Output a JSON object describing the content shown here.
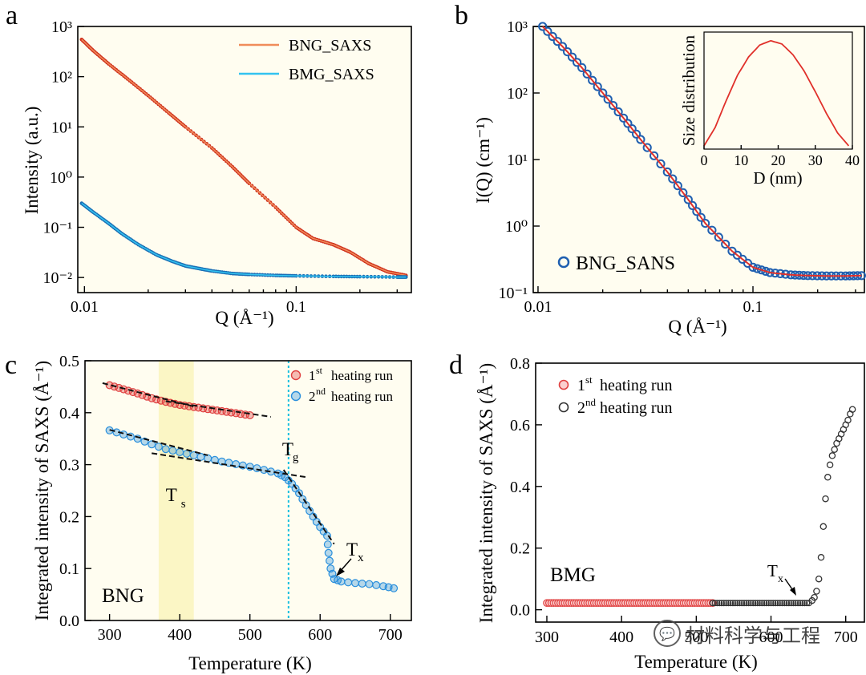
{
  "chart_data": [
    {
      "panel": "a",
      "type": "line",
      "xscale": "log",
      "yscale": "log",
      "xlim": [
        0.0093,
        0.35
      ],
      "ylim": [
        0.005,
        1000
      ],
      "xlabel": "Q (Å⁻¹)",
      "ylabel": "Intensity (a.u.)",
      "xticks": [
        {
          "v": 0.01,
          "label": "0.01"
        },
        {
          "v": 0.1,
          "label": "0.1"
        }
      ],
      "yticks": [
        {
          "v": 0.01,
          "label": "10⁻²"
        },
        {
          "v": 0.1,
          "label": "10⁻¹"
        },
        {
          "v": 1,
          "label": "10⁰"
        },
        {
          "v": 10,
          "label": "10¹"
        },
        {
          "v": 100,
          "label": "10²"
        },
        {
          "v": 1000,
          "label": "10³"
        }
      ],
      "legend_position": "top-right",
      "series": [
        {
          "name": "BNG_SAXS",
          "color": "#d0321e",
          "line_color": "#f08c5a",
          "x": [
            0.0097,
            0.011,
            0.013,
            0.016,
            0.02,
            0.025,
            0.03,
            0.04,
            0.05,
            0.06,
            0.08,
            0.1,
            0.12,
            0.15,
            0.18,
            0.22,
            0.27,
            0.33
          ],
          "y": [
            550,
            330,
            180,
            90,
            42,
            19,
            10,
            3.8,
            1.6,
            0.75,
            0.25,
            0.1,
            0.06,
            0.045,
            0.032,
            0.019,
            0.013,
            0.011
          ]
        },
        {
          "name": "BMG_SAXS",
          "color": "#1a6fb5",
          "line_color": "#33c3f0",
          "x": [
            0.0097,
            0.011,
            0.013,
            0.015,
            0.018,
            0.022,
            0.026,
            0.03,
            0.035,
            0.04,
            0.05,
            0.06,
            0.08,
            0.1,
            0.15,
            0.2,
            0.3,
            0.33
          ],
          "y": [
            0.3,
            0.2,
            0.12,
            0.075,
            0.045,
            0.028,
            0.021,
            0.017,
            0.015,
            0.0135,
            0.012,
            0.0115,
            0.011,
            0.0108,
            0.0105,
            0.0104,
            0.0102,
            0.0102
          ]
        }
      ]
    },
    {
      "panel": "b",
      "type": "scatter",
      "xscale": "log",
      "yscale": "log",
      "xlim": [
        0.0095,
        0.33
      ],
      "ylim": [
        0.1,
        1000
      ],
      "xlabel": "Q (Å⁻¹)",
      "ylabel": "I(Q) (cm⁻¹)",
      "xticks": [
        {
          "v": 0.01,
          "label": "0.01"
        },
        {
          "v": 0.1,
          "label": "0.1"
        }
      ],
      "yticks": [
        {
          "v": 0.1,
          "label": "10⁻¹"
        },
        {
          "v": 1,
          "label": "10⁰"
        },
        {
          "v": 10,
          "label": "10¹"
        },
        {
          "v": 100,
          "label": "10²"
        },
        {
          "v": 1000,
          "label": "10³"
        }
      ],
      "legend_position": "bottom-left",
      "series": [
        {
          "name": "BNG_SANS",
          "marker_color": "#1f5fb0",
          "fit_color": "#e0302a",
          "x": [
            0.0105,
            0.013,
            0.016,
            0.02,
            0.025,
            0.03,
            0.04,
            0.05,
            0.06,
            0.08,
            0.1,
            0.12,
            0.15,
            0.18,
            0.22,
            0.27,
            0.32
          ],
          "y": [
            1000,
            500,
            240,
            100,
            42,
            20,
            6.5,
            2.5,
            1.1,
            0.42,
            0.24,
            0.2,
            0.185,
            0.18,
            0.178,
            0.178,
            0.18
          ]
        }
      ],
      "inset": {
        "type": "line",
        "xlabel": "D (nm)",
        "ylabel": "Size distribution",
        "xlim": [
          0,
          40
        ],
        "xticks": [
          {
            "v": 0,
            "label": "0"
          },
          {
            "v": 10,
            "label": "10"
          },
          {
            "v": 20,
            "label": "20"
          },
          {
            "v": 30,
            "label": "30"
          },
          {
            "v": 40,
            "label": "40"
          }
        ],
        "color": "#e0302a",
        "x": [
          0,
          3,
          6,
          9,
          12,
          15,
          18,
          21,
          24,
          27,
          30,
          33,
          36,
          39
        ],
        "y": [
          0.03,
          0.2,
          0.45,
          0.68,
          0.85,
          0.96,
          1.0,
          0.97,
          0.87,
          0.72,
          0.53,
          0.33,
          0.15,
          0.03
        ]
      }
    },
    {
      "panel": "c",
      "type": "scatter",
      "xlim": [
        265,
        730
      ],
      "ylim": [
        0,
        0.5
      ],
      "xlabel": "Temperature (K)",
      "ylabel": "Integrated intensity of SAXS (Å⁻¹)",
      "xticks": [
        {
          "v": 300,
          "label": "300"
        },
        {
          "v": 400,
          "label": "400"
        },
        {
          "v": 500,
          "label": "500"
        },
        {
          "v": 600,
          "label": "600"
        },
        {
          "v": 700,
          "label": "700"
        }
      ],
      "yticks": [
        {
          "v": 0,
          "label": "0.0"
        },
        {
          "v": 0.1,
          "label": "0.1"
        },
        {
          "v": 0.2,
          "label": "0.2"
        },
        {
          "v": 0.3,
          "label": "0.3"
        },
        {
          "v": 0.4,
          "label": "0.4"
        },
        {
          "v": 0.5,
          "label": "0.5"
        }
      ],
      "legend_position": "top-right",
      "sample_label": "BNG",
      "shaded_band": {
        "x0": 370,
        "x1": 420,
        "label": "T",
        "sub": "s"
      },
      "vline": {
        "x": 555,
        "label": "T",
        "sub": "g"
      },
      "tx_marker": {
        "label": "T",
        "sub": "x",
        "x": 625,
        "y": 0.09
      },
      "series": [
        {
          "name_main": "1",
          "name_sup": "st",
          "name_rest": "heating run",
          "color": "#e04040",
          "x": [
            300,
            320,
            340,
            360,
            380,
            400,
            420,
            440,
            460,
            480,
            500
          ],
          "y": [
            0.453,
            0.445,
            0.437,
            0.428,
            0.421,
            0.415,
            0.411,
            0.407,
            0.403,
            0.399,
            0.395
          ]
        },
        {
          "name_main": "2",
          "name_sup": "nd",
          "name_rest": "heating run",
          "color": "#2a8fdc",
          "x": [
            300,
            320,
            340,
            360,
            380,
            400,
            420,
            440,
            460,
            480,
            500,
            520,
            540,
            550,
            560,
            570,
            580,
            590,
            600,
            610,
            612,
            615,
            620,
            630,
            650,
            670,
            690,
            705
          ],
          "y": [
            0.366,
            0.358,
            0.35,
            0.339,
            0.33,
            0.324,
            0.318,
            0.312,
            0.306,
            0.301,
            0.296,
            0.29,
            0.283,
            0.276,
            0.263,
            0.245,
            0.222,
            0.2,
            0.18,
            0.163,
            0.13,
            0.1,
            0.08,
            0.075,
            0.072,
            0.07,
            0.066,
            0.062
          ]
        }
      ]
    },
    {
      "panel": "d",
      "type": "scatter",
      "xlim": [
        285,
        725
      ],
      "ylim": [
        -0.04,
        0.8
      ],
      "xlabel": "Temperature (K)",
      "ylabel": "Integrated intensity of SAXS (Å⁻¹)",
      "xticks": [
        {
          "v": 300,
          "label": "300"
        },
        {
          "v": 400,
          "label": "400"
        },
        {
          "v": 500,
          "label": "500"
        },
        {
          "v": 600,
          "label": "600"
        },
        {
          "v": 700,
          "label": "700"
        }
      ],
      "yticks": [
        {
          "v": 0,
          "label": "0.0"
        },
        {
          "v": 0.2,
          "label": "0.2"
        },
        {
          "v": 0.4,
          "label": "0.4"
        },
        {
          "v": 0.6,
          "label": "0.6"
        },
        {
          "v": 0.8,
          "label": "0.8"
        }
      ],
      "legend_position": "top-left",
      "sample_label": "BMG",
      "tx_marker": {
        "label": "T",
        "sub": "x",
        "x": 655,
        "y": 0.03
      },
      "series": [
        {
          "name_main": "1",
          "name_sup": "st",
          "name_rest": " heating run",
          "color": "#e04040",
          "x_start": 300,
          "x_end": 522,
          "x_step": 3,
          "y_const": 0.022
        },
        {
          "name_main": "2",
          "name_sup": "nd",
          "name_rest": " heating run",
          "color": "#333333",
          "x_start": 522,
          "x_end": 652,
          "x_step": 3,
          "y_const": 0.022,
          "x_rise": [
            655,
            658,
            661,
            664,
            667,
            670,
            673,
            676,
            679,
            682,
            685,
            688,
            691,
            694,
            697,
            700,
            703,
            706,
            709
          ],
          "y_rise": [
            0.03,
            0.04,
            0.06,
            0.1,
            0.17,
            0.27,
            0.36,
            0.43,
            0.47,
            0.5,
            0.52,
            0.54,
            0.555,
            0.57,
            0.585,
            0.6,
            0.615,
            0.635,
            0.65
          ]
        }
      ]
    }
  ],
  "watermark": {
    "text": "材料科学与工程",
    "icon": "wechat-icon"
  }
}
